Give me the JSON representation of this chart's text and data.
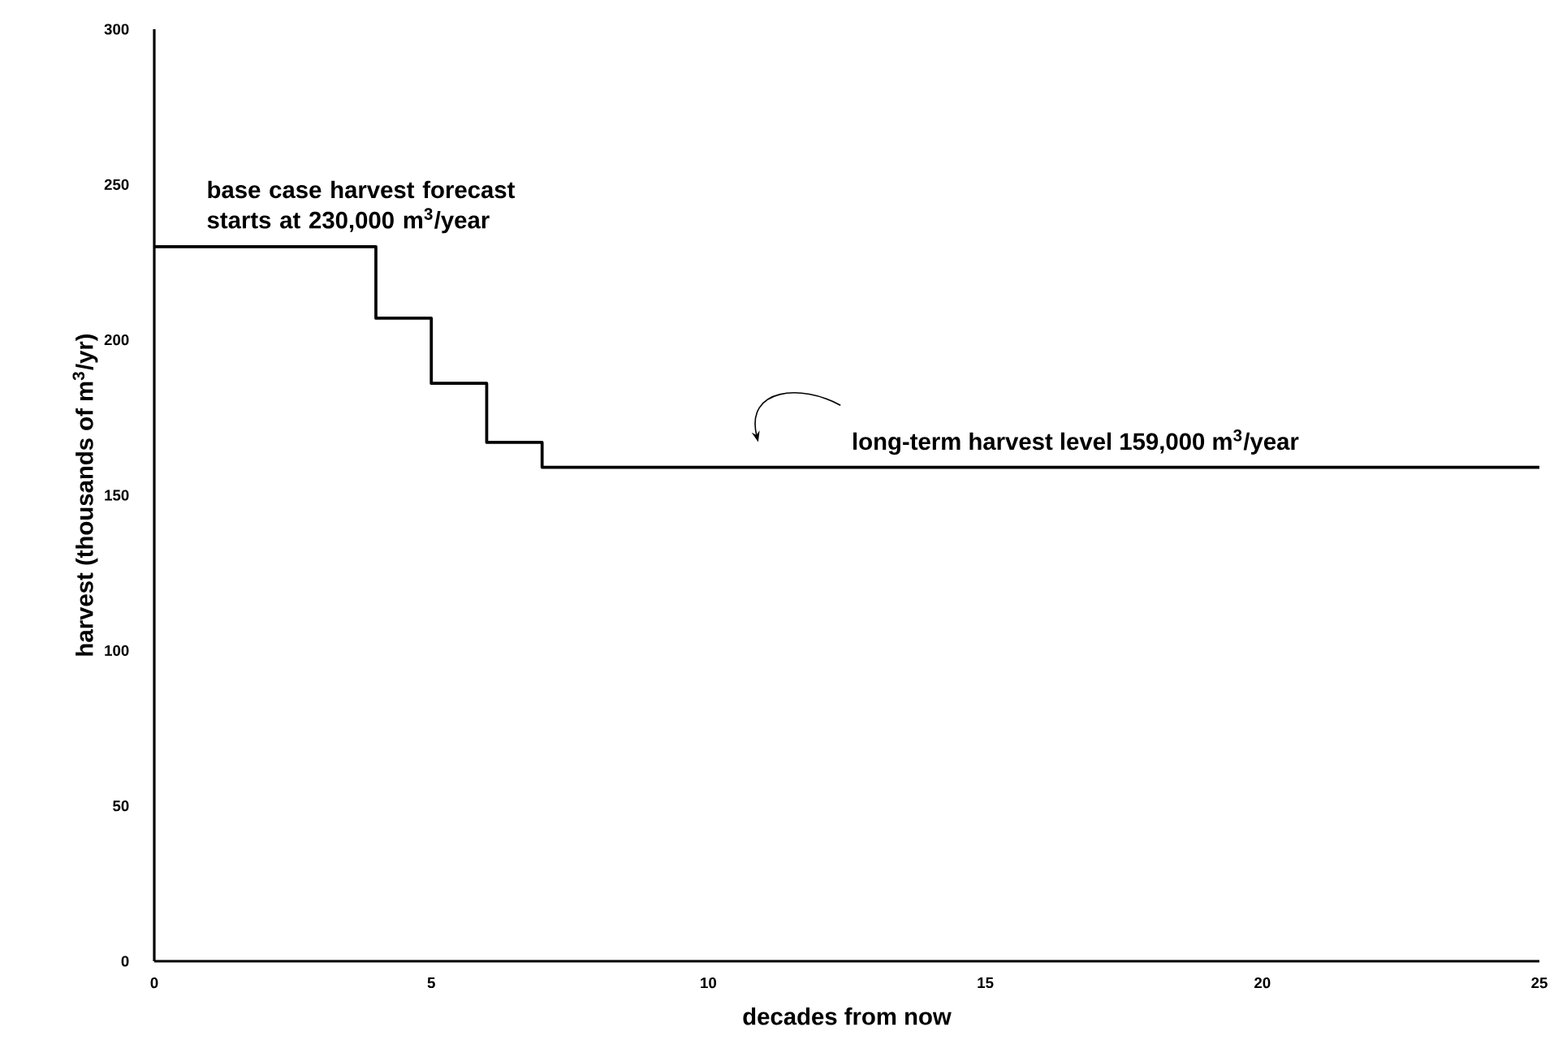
{
  "chart_data": {
    "type": "step",
    "xlabel": "decades from now",
    "ylabel": "harvest (thousands of m$^{3}$/yr)",
    "x": [
      0,
      4,
      5,
      6,
      7,
      25
    ],
    "values": [
      230,
      207,
      186,
      167,
      159,
      159
    ],
    "color": "#000000",
    "xlim": [
      0,
      25
    ],
    "xticks": [
      0,
      5,
      10,
      15,
      20,
      25
    ],
    "ylim": [
      0,
      300
    ],
    "yticks": [
      0,
      50,
      100,
      150,
      200,
      250,
      300
    ],
    "grid": false,
    "marker": "none",
    "line_style": "solid",
    "annotations": [
      {
        "text": "base case harvest forecast starts at 230,000 m$^{3}$/year",
        "x": 0,
        "y": 230
      },
      "long-term harvest level 159,000 m$^{3}$/year"
    ]
  }
}
